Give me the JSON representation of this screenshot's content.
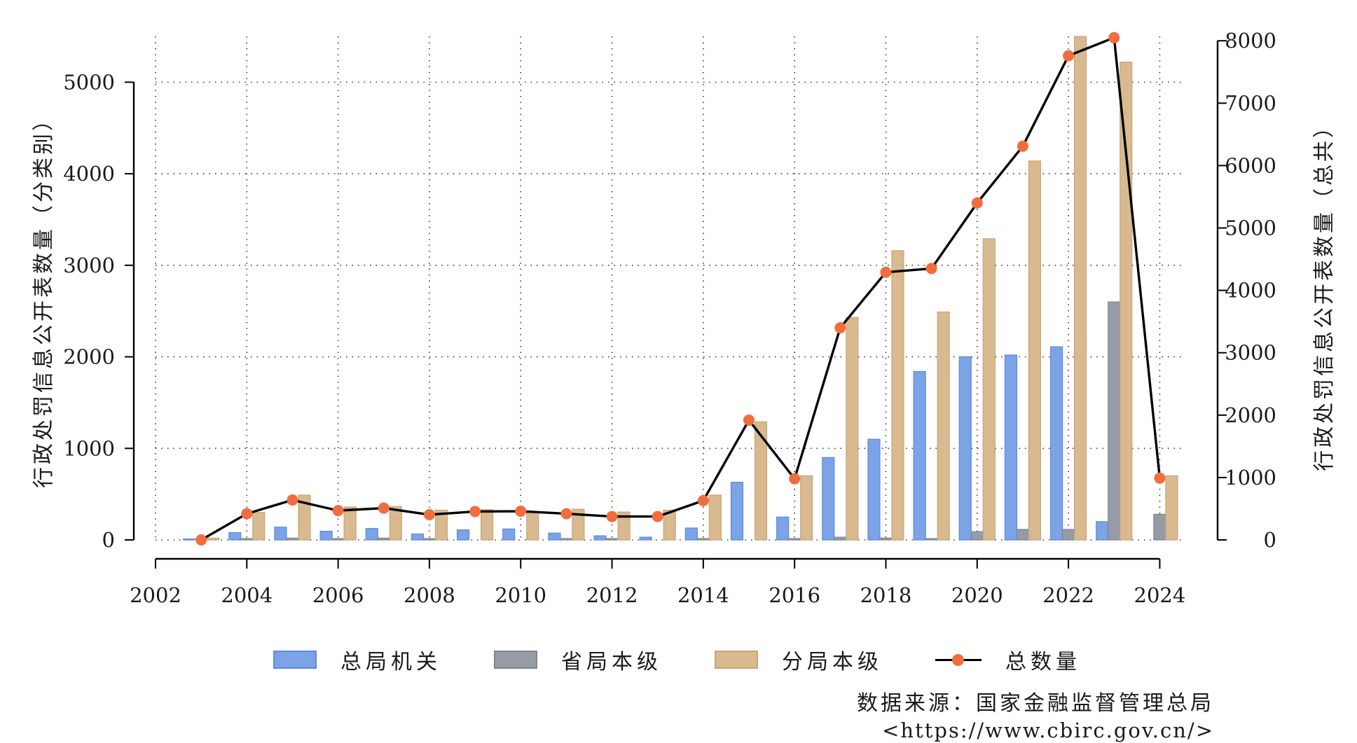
{
  "chart_data": {
    "type": "bar",
    "xlabel": "",
    "ylabel_left": "行政处罚信息公开表数量（分类别）",
    "ylabel_right": "行政处罚信息公开表数量（总共）",
    "x_ticks": [
      2002,
      2004,
      2006,
      2008,
      2010,
      2012,
      2014,
      2016,
      2018,
      2020,
      2022,
      2024
    ],
    "xlim": [
      2002,
      2024.5
    ],
    "ylim_left": [
      0,
      5500
    ],
    "yticks_left": [
      0,
      1000,
      2000,
      3000,
      4000,
      5000
    ],
    "ylim_right": [
      0,
      8070
    ],
    "yticks_right": [
      0,
      1000,
      2000,
      3000,
      4000,
      5000,
      6000,
      7000,
      8000
    ],
    "grid": true,
    "legend_position": "bottom",
    "x": [
      2003,
      2004,
      2005,
      2006,
      2007,
      2008,
      2009,
      2010,
      2011,
      2012,
      2013,
      2014,
      2015,
      2016,
      2017,
      2018,
      2019,
      2020,
      2021,
      2022,
      2023,
      2024
    ],
    "series": [
      {
        "name": "总局机关",
        "axis": "left",
        "kind": "bar",
        "color": "#7ba3e6",
        "values": [
          10,
          80,
          140,
          95,
          125,
          65,
          110,
          120,
          75,
          45,
          30,
          130,
          630,
          250,
          900,
          1100,
          1840,
          2000,
          2020,
          2110,
          200,
          0
        ]
      },
      {
        "name": "省局本级",
        "axis": "left",
        "kind": "bar",
        "color": "#969ca5",
        "values": [
          0,
          15,
          20,
          15,
          20,
          15,
          0,
          0,
          15,
          15,
          0,
          15,
          0,
          15,
          30,
          20,
          15,
          90,
          115,
          115,
          2600,
          280
        ]
      },
      {
        "name": "分局本级",
        "axis": "left",
        "kind": "bar",
        "color": "#d9b990",
        "values": [
          20,
          300,
          490,
          360,
          365,
          325,
          330,
          310,
          335,
          305,
          325,
          490,
          1290,
          700,
          2430,
          3160,
          2490,
          3290,
          4140,
          5500,
          5220,
          700
        ]
      },
      {
        "name": "总数量",
        "axis": "right",
        "kind": "line",
        "color": "#000000",
        "marker_color": "#f26d3d",
        "values": [
          0,
          420,
          640,
          470,
          510,
          405,
          455,
          460,
          420,
          375,
          375,
          630,
          1920,
          980,
          3400,
          4290,
          4350,
          5400,
          6310,
          7760,
          8050,
          990
        ]
      }
    ]
  },
  "legend": [
    {
      "label": "总局机关",
      "color": "#7ba3e6",
      "border": "#5f8ad8",
      "type": "bar"
    },
    {
      "label": "省局本级",
      "color": "#969ca5",
      "border": "#80868f",
      "type": "bar"
    },
    {
      "label": "分局本级",
      "color": "#d9b990",
      "border": "#c9a574",
      "type": "bar"
    },
    {
      "label": "总数量",
      "color": "#000000",
      "marker": "#f26d3d",
      "type": "line"
    }
  ],
  "source": {
    "line1": "数据来源：国家金融监督管理总局",
    "line2": "<https://www.cbirc.gov.cn/>"
  }
}
